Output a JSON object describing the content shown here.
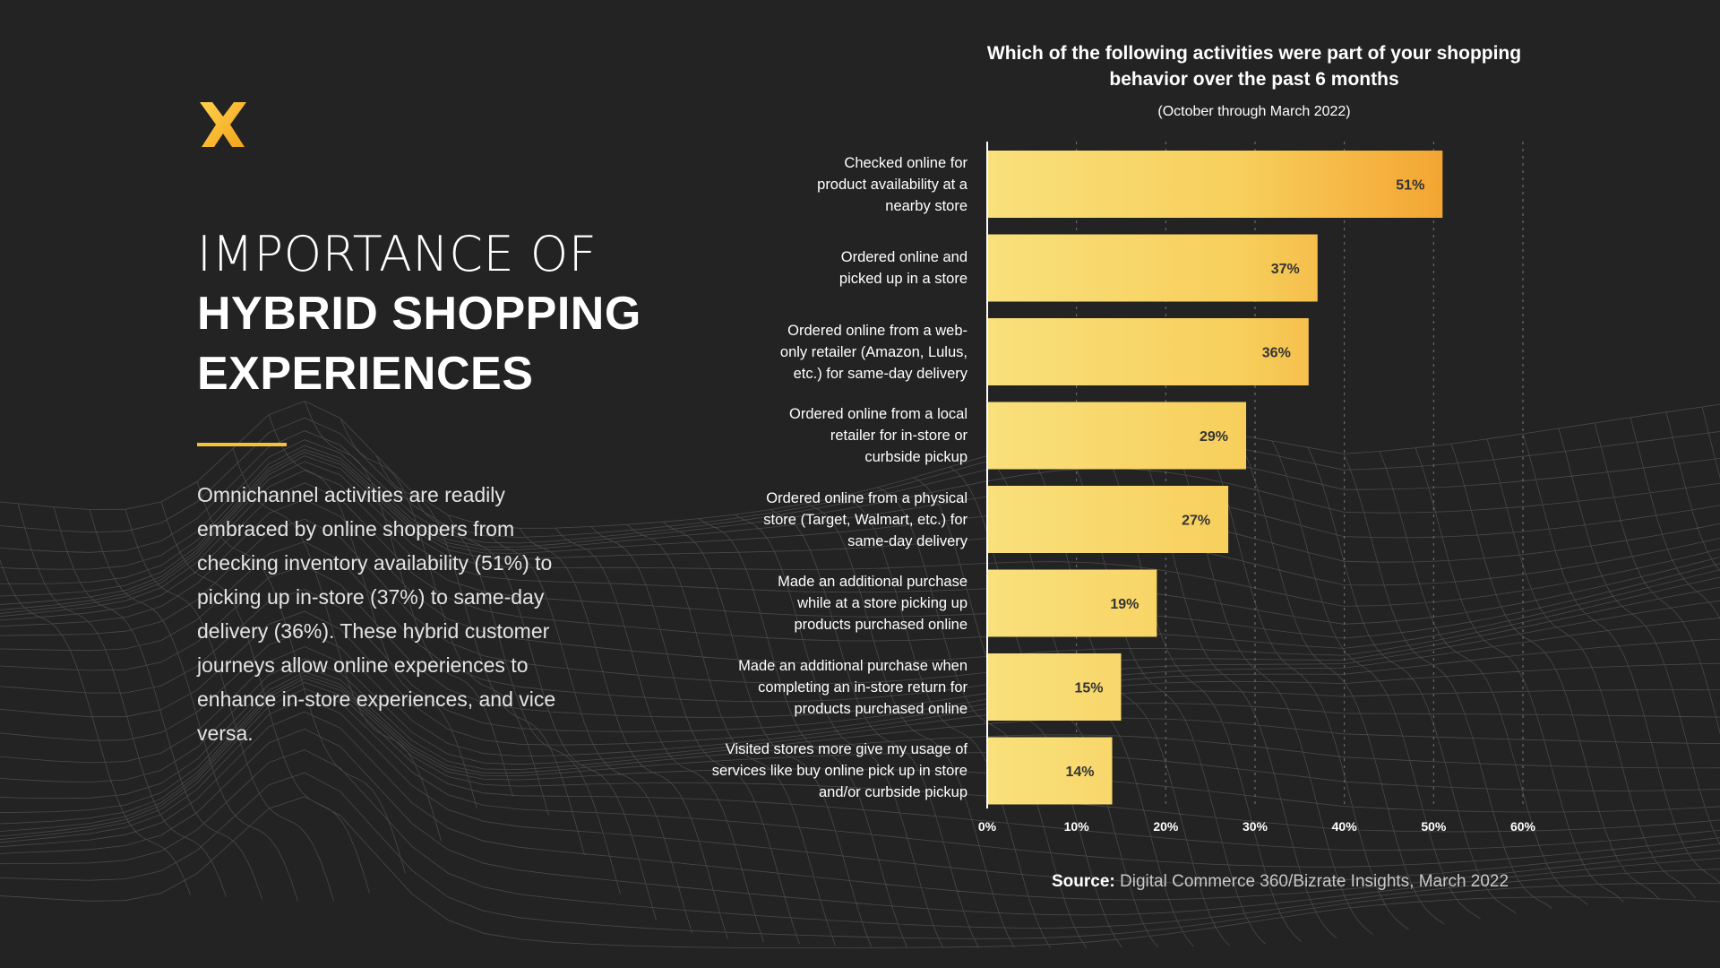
{
  "brand": {
    "logo_icon": "x-logo-icon",
    "accent": "#f5c13c"
  },
  "heading": {
    "line1": "IMPORTANCE OF",
    "line2": "HYBRID SHOPPING",
    "line3": "EXPERIENCES"
  },
  "body_text": "Omnichannel activities are readily embraced by online shoppers from checking inventory availability (51%) to picking up in-store (37%) to same-day delivery (36%). These hybrid customer journeys allow online experiences to enhance in-store experiences, and vice versa.",
  "source": {
    "label": "Source:",
    "text": "Digital Commerce 360/Bizrate Insights, March 2022"
  },
  "chart_data": {
    "type": "bar",
    "orientation": "horizontal",
    "title": "Which of the following activities were part of your shopping behavior over the past 6 months",
    "subtitle": "(October through March 2022)",
    "categories": [
      "Checked online for product availability at a nearby store",
      "Ordered online and picked up in a store",
      "Ordered online from a web-only retailer (Amazon, Lulus, etc.) for same-day delivery",
      "Ordered online from a local retailer for in-store or curbside pickup",
      "Ordered online from a physical store (Target, Walmart, etc.) for same-day delivery",
      "Made an additional purchase while at a store picking up products purchased online",
      "Made an additional purchase when completing an in-store return for products purchased online",
      "Visited stores more give my usage of services like buy online pick up in store and/or curbside pickup"
    ],
    "values": [
      51,
      37,
      36,
      29,
      27,
      19,
      15,
      14
    ],
    "data_labels": [
      "51%",
      "37%",
      "36%",
      "29%",
      "27%",
      "19%",
      "15%",
      "14%"
    ],
    "xlim": [
      0,
      60
    ],
    "x_ticks": [
      "0%",
      "10%",
      "20%",
      "30%",
      "40%",
      "50%",
      "60%"
    ],
    "grid": "vertical dashed",
    "colors": {
      "bar_start": "#f9e07c",
      "bar_end": "#f4a532"
    }
  }
}
